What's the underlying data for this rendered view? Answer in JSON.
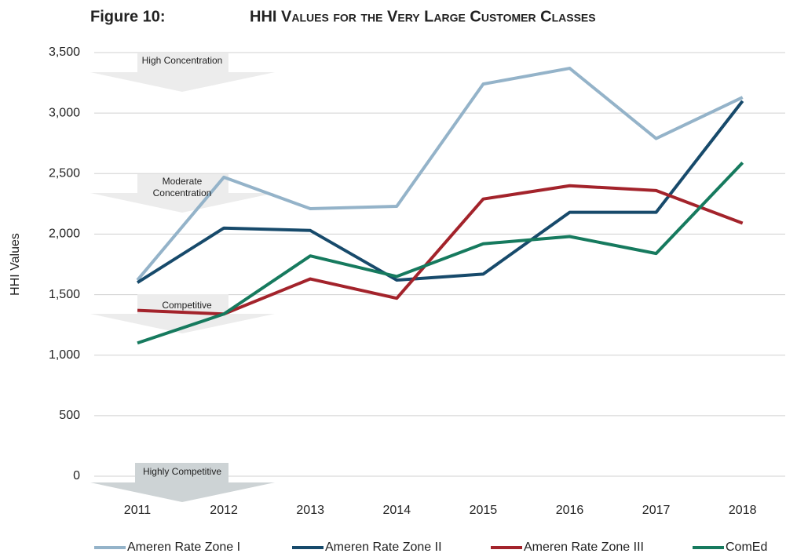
{
  "chart_data": {
    "type": "line",
    "figure_label": "Figure 10:",
    "title": "HHI Values for the Very Large Customer Classes",
    "y_label": "HHI Values",
    "categories": [
      "2011",
      "2012",
      "2013",
      "2014",
      "2015",
      "2016",
      "2017",
      "2018"
    ],
    "series": [
      {
        "name": "Ameren Rate Zone I",
        "color": "#94b3c9",
        "values": [
          1620,
          2470,
          2210,
          2230,
          3240,
          3370,
          2790,
          3130
        ]
      },
      {
        "name": "Ameren Rate Zone II",
        "color": "#174a6b",
        "values": [
          1600,
          2050,
          2030,
          1620,
          1670,
          2180,
          2180,
          3100
        ]
      },
      {
        "name": "Ameren Rate Zone III",
        "color": "#a3232b",
        "values": [
          1370,
          1340,
          1630,
          1470,
          2290,
          2400,
          2360,
          2090
        ]
      },
      {
        "name": "ComEd",
        "color": "#167a5e",
        "values": [
          1100,
          1340,
          1820,
          1650,
          1920,
          1980,
          1840,
          2590
        ]
      }
    ],
    "ylim": [
      0,
      3500
    ],
    "yticks": [
      0,
      500,
      {
        "value": 1000,
        "label": "1,000"
      },
      {
        "value": 1500,
        "label": "1,500"
      },
      {
        "value": 2000,
        "label": "2,000"
      },
      {
        "value": 2500,
        "label": "2,500"
      },
      {
        "value": 3000,
        "label": "3,000"
      },
      {
        "value": 3500,
        "label": "3,500"
      }
    ],
    "grid": true,
    "legend": "bottom",
    "annotations": [
      "High Concentration",
      "Moderate Concentration",
      "Competitive",
      "Highly Competitive"
    ]
  }
}
